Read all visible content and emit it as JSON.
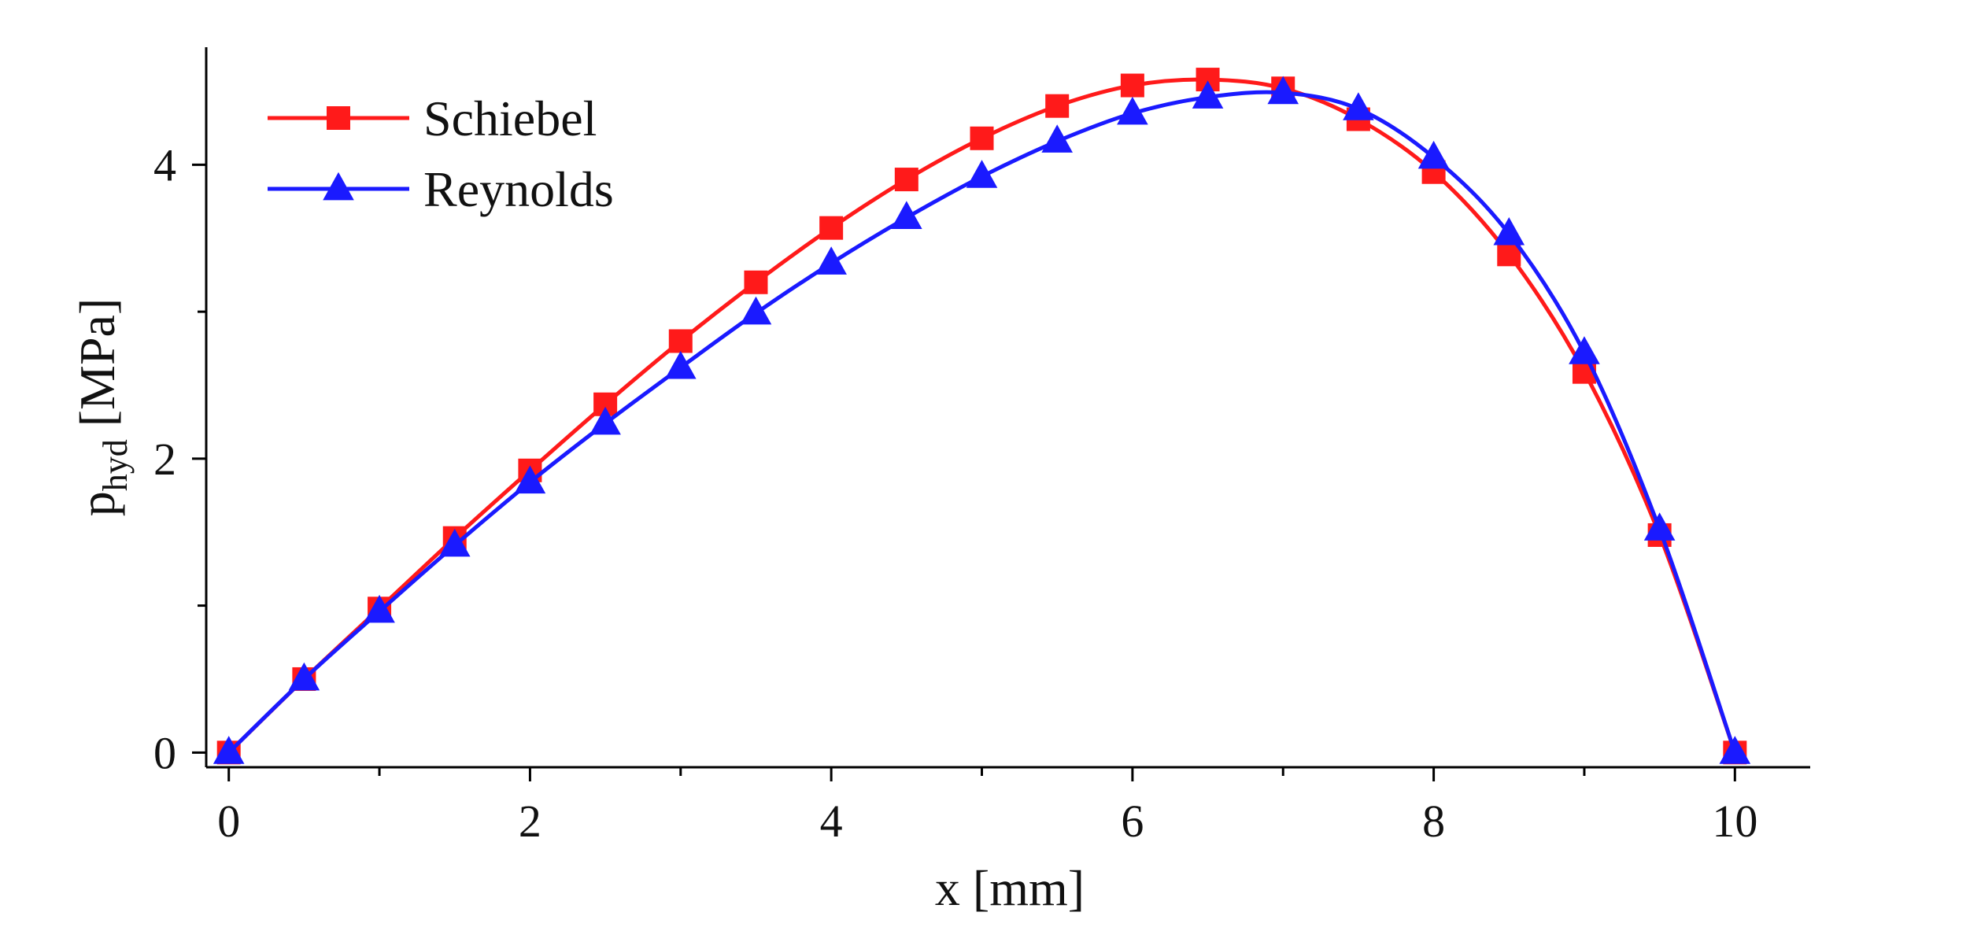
{
  "chart_data": {
    "type": "line",
    "title": "",
    "xlabel": "x [mm]",
    "ylabel": "p_hyd [MPa]",
    "ylabel_main": "p",
    "ylabel_sub": "hyd",
    "ylabel_unit": "[MPa]",
    "xlim": [
      -0.15,
      10.5
    ],
    "ylim": [
      -0.1,
      4.8
    ],
    "xticks": [
      0,
      2,
      4,
      6,
      8,
      10
    ],
    "yticks": [
      0,
      2,
      4
    ],
    "grid": false,
    "legend_position": "top-left",
    "series": [
      {
        "name": "Schiebel",
        "color": "#ff1a1a",
        "marker": "square",
        "x": [
          0,
          0.5,
          1,
          1.5,
          2,
          2.5,
          3,
          3.5,
          4,
          4.5,
          5,
          5.5,
          6,
          6.5,
          7,
          7.5,
          8,
          8.5,
          9,
          9.5,
          10
        ],
        "values": [
          0,
          0.5,
          0.98,
          1.46,
          1.92,
          2.37,
          2.8,
          3.2,
          3.57,
          3.9,
          4.18,
          4.4,
          4.54,
          4.58,
          4.52,
          4.31,
          3.95,
          3.39,
          2.59,
          1.48,
          0
        ]
      },
      {
        "name": "Reynolds",
        "color": "#1a1aff",
        "marker": "triangle",
        "x": [
          0,
          0.5,
          1,
          1.5,
          2,
          2.5,
          3,
          3.5,
          4,
          4.5,
          5,
          5.5,
          6,
          6.5,
          7,
          7.5,
          8,
          8.5,
          9,
          9.5,
          10
        ],
        "values": [
          0,
          0.5,
          0.96,
          1.41,
          1.84,
          2.24,
          2.62,
          2.99,
          3.33,
          3.64,
          3.92,
          4.16,
          4.35,
          4.46,
          4.49,
          4.38,
          4.05,
          3.53,
          2.72,
          1.52,
          0
        ]
      }
    ]
  }
}
